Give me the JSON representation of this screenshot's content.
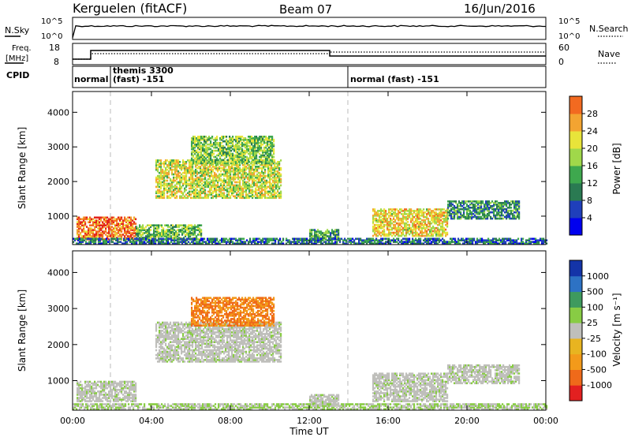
{
  "header": {
    "station": "Kerguelen (fitACF)",
    "beam": "Beam 07",
    "date": "16/Jun/2016"
  },
  "panels": {
    "nsky": {
      "left_label": "N.Sky",
      "left_ticks": [
        "10^5",
        "10^0"
      ],
      "right_ticks": [
        "10^5",
        "10^0"
      ],
      "right_label": "N.Search"
    },
    "freq": {
      "left_label_1": "Freq.",
      "left_label_2": "[MHz]",
      "left_ticks": [
        "18",
        "8"
      ],
      "right_ticks": [
        "60",
        "0"
      ],
      "right_label": "Nave"
    },
    "cpid": {
      "label": "CPID",
      "segments": [
        {
          "line1": "normal",
          "line2": ""
        },
        {
          "line1": "themis 3300",
          "line2": "(fast) -151"
        },
        {
          "line1": "normal (fast) -151",
          "line2": ""
        }
      ]
    }
  },
  "colors": {
    "power": [
      "#0000ee",
      "#1f3fbb",
      "#2a7a52",
      "#3ea84e",
      "#a0d84a",
      "#e8e43a",
      "#f3a431",
      "#f26a20",
      "#e3241c"
    ],
    "velocity": [
      "#1434a8",
      "#2d72c4",
      "#3e9a5e",
      "#88cc44",
      "#bfbfbb",
      "#e8b420",
      "#f39a1a",
      "#ef6a1a",
      "#e32020"
    ]
  },
  "chart_data": [
    {
      "type": "heatmap",
      "title": "",
      "xlabel": "",
      "ylabel": "Slant Range [km]",
      "x_ticks": [
        "00:00",
        "04:00",
        "08:00",
        "12:00",
        "16:00",
        "20:00",
        "00:00"
      ],
      "y_ticks": [
        "1000",
        "2000",
        "3000",
        "4000"
      ],
      "xlim": [
        0,
        24
      ],
      "ylim": [
        180,
        4600
      ],
      "colorbar": {
        "label": "Power [dB]",
        "ticks": [
          "4",
          "8",
          "12",
          "16",
          "20",
          "24",
          "28"
        ],
        "range": [
          0,
          32
        ]
      },
      "regions": [
        {
          "t": [
            0.2,
            3.2
          ],
          "r": [
            300,
            950
          ],
          "v": 26
        },
        {
          "t": [
            3.2,
            6.5
          ],
          "r": [
            300,
            750
          ],
          "v": 14
        },
        {
          "t": [
            4.2,
            10.6
          ],
          "r": [
            1500,
            2600
          ],
          "v": 18
        },
        {
          "t": [
            6.0,
            10.2
          ],
          "r": [
            2500,
            3300
          ],
          "v": 15
        },
        {
          "t": [
            12.0,
            13.5
          ],
          "r": [
            300,
            600
          ],
          "v": 12
        },
        {
          "t": [
            15.2,
            19.0
          ],
          "r": [
            400,
            1200
          ],
          "v": 20
        },
        {
          "t": [
            19.0,
            22.6
          ],
          "r": [
            900,
            1400
          ],
          "v": 10
        },
        {
          "t": [
            0.0,
            24.0
          ],
          "r": [
            180,
            350
          ],
          "v": 8
        }
      ]
    },
    {
      "type": "heatmap",
      "title": "",
      "xlabel": "Time UT",
      "ylabel": "Slant Range [km]",
      "x_ticks": [
        "00:00",
        "04:00",
        "08:00",
        "12:00",
        "16:00",
        "20:00",
        "00:00"
      ],
      "y_ticks": [
        "1000",
        "2000",
        "3000",
        "4000"
      ],
      "xlim": [
        0,
        24
      ],
      "ylim": [
        180,
        4600
      ],
      "colorbar": {
        "label": "Velocity [m s⁻¹]",
        "ticks": [
          "1000",
          "500",
          "100",
          "25",
          "-25",
          "-100",
          "-500",
          "-1000"
        ],
        "range": [
          -1000,
          1000
        ]
      },
      "regions": [
        {
          "t": [
            0.2,
            3.2
          ],
          "r": [
            400,
            950
          ],
          "v": 0
        },
        {
          "t": [
            4.2,
            10.6
          ],
          "r": [
            1500,
            2600
          ],
          "v": 0
        },
        {
          "t": [
            6.0,
            10.2
          ],
          "r": [
            2500,
            3300
          ],
          "v": -300
        },
        {
          "t": [
            12.0,
            13.5
          ],
          "r": [
            300,
            600
          ],
          "v": 0
        },
        {
          "t": [
            15.2,
            19.0
          ],
          "r": [
            400,
            1200
          ],
          "v": 0
        },
        {
          "t": [
            19.0,
            22.6
          ],
          "r": [
            900,
            1400
          ],
          "v": 0
        },
        {
          "t": [
            0.0,
            24.0
          ],
          "r": [
            180,
            350
          ],
          "v": 50
        }
      ]
    }
  ]
}
